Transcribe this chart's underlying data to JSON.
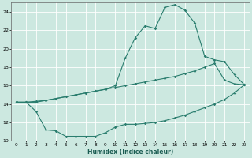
{
  "xlabel": "Humidex (Indice chaleur)",
  "xlim": [
    -0.5,
    23.5
  ],
  "ylim": [
    10,
    25
  ],
  "yticks": [
    10,
    12,
    14,
    16,
    18,
    20,
    22,
    24
  ],
  "xticks": [
    0,
    1,
    2,
    3,
    4,
    5,
    6,
    7,
    8,
    9,
    10,
    11,
    12,
    13,
    14,
    15,
    16,
    17,
    18,
    19,
    20,
    21,
    22,
    23
  ],
  "bg_color": "#cce8e0",
  "grid_color": "#ffffff",
  "line_color": "#2a7d6e",
  "line1_x": [
    0,
    1,
    2,
    3,
    4,
    5,
    6,
    7,
    8,
    9,
    10,
    11,
    12,
    13,
    14,
    15,
    16,
    17,
    18,
    19,
    20,
    21,
    22,
    23
  ],
  "line1_y": [
    14.2,
    14.2,
    14.3,
    14.4,
    14.6,
    14.8,
    15.0,
    15.2,
    15.4,
    15.6,
    16.0,
    19.0,
    21.2,
    22.5,
    22.2,
    24.5,
    24.8,
    24.2,
    22.8,
    19.2,
    18.8,
    18.6,
    17.2,
    16.1
  ],
  "line2_x": [
    0,
    1,
    2,
    3,
    4,
    5,
    6,
    7,
    8,
    9,
    10,
    11,
    12,
    13,
    14,
    15,
    16,
    17,
    18,
    19,
    20,
    21,
    22,
    23
  ],
  "line2_y": [
    14.2,
    14.2,
    13.2,
    11.2,
    11.1,
    10.5,
    10.5,
    10.5,
    10.5,
    10.9,
    11.5,
    11.8,
    11.8,
    11.9,
    12.0,
    12.2,
    12.5,
    12.8,
    13.2,
    13.6,
    14.0,
    14.5,
    15.2,
    16.1
  ],
  "line3_x": [
    0,
    1,
    2,
    3,
    4,
    5,
    6,
    7,
    8,
    9,
    10,
    11,
    12,
    13,
    14,
    15,
    16,
    17,
    18,
    19,
    20,
    21,
    22,
    23
  ],
  "line3_y": [
    14.2,
    14.2,
    14.2,
    14.4,
    14.6,
    14.8,
    15.0,
    15.2,
    15.4,
    15.6,
    15.8,
    16.0,
    16.2,
    16.4,
    16.6,
    16.8,
    17.0,
    17.3,
    17.6,
    18.0,
    18.4,
    16.6,
    16.2,
    16.1
  ]
}
